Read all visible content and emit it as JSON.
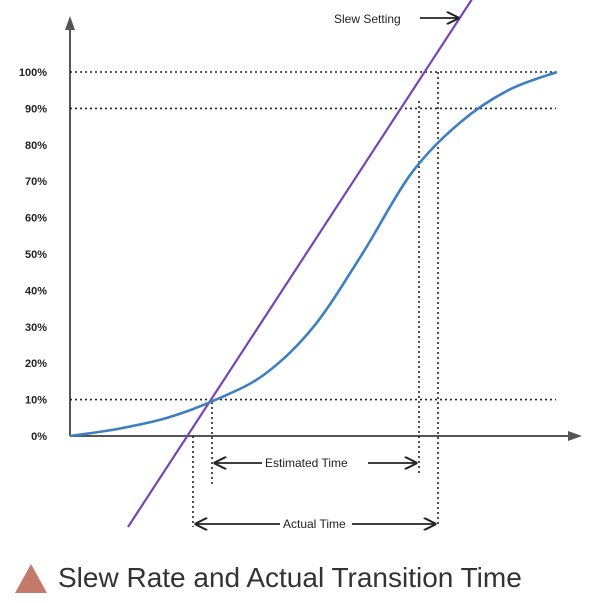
{
  "chart_data": {
    "type": "line",
    "y_ticks": [
      "0%",
      "10%",
      "20%",
      "30%",
      "40%",
      "50%",
      "60%",
      "70%",
      "80%",
      "90%",
      "100%"
    ],
    "ylim": [
      0,
      100
    ],
    "grid": false,
    "series": [
      {
        "x": [
          0,
          10,
          20,
          30,
          40,
          50,
          60,
          70,
          80,
          90,
          100
        ],
        "y": [
          0,
          2,
          5,
          10,
          17,
          30,
          50,
          72,
          86,
          95,
          100
        ]
      },
      {
        "y": [
          -25,
          120
        ]
      }
    ],
    "reference_levels": [
      10,
      90,
      100
    ],
    "annotations": {
      "slew_setting": "Slew Setting",
      "estimated_time": "Estimated Time",
      "actual_time": "Actual Time"
    },
    "colors": {
      "curve": "#3d7fc1",
      "slew_line": "#7a43b3",
      "axes": "#555555",
      "reference": "#222222"
    }
  },
  "caption": {
    "text": "Slew Rate and Actual Transition Time",
    "icon": "triangle-icon",
    "icon_color": "#c47a6a"
  }
}
